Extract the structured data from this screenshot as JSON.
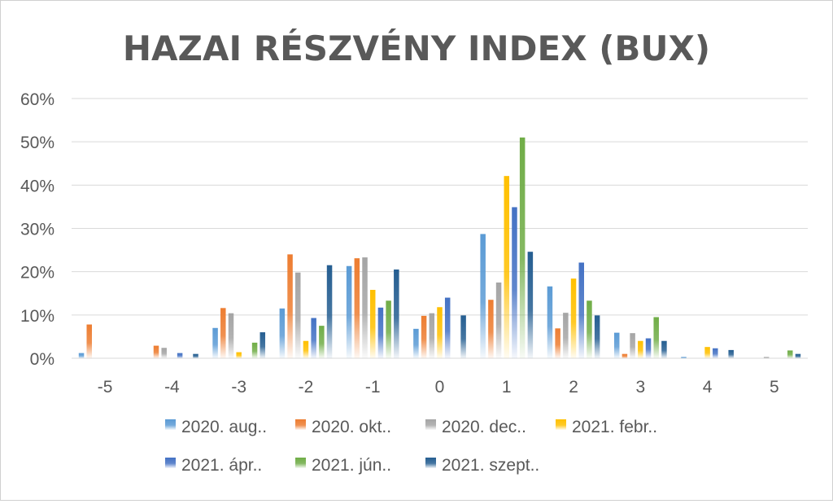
{
  "chart_data": {
    "type": "bar",
    "title": "HAZAI RÉSZVÉNY INDEX (BUX)",
    "xlabel": "",
    "ylabel": "",
    "categories": [
      "-5",
      "-4",
      "-3",
      "-2",
      "-1",
      "0",
      "1",
      "2",
      "3",
      "4",
      "5"
    ],
    "y_ticks": [
      "0%",
      "10%",
      "20%",
      "30%",
      "40%",
      "50%",
      "60%"
    ],
    "ylim": [
      0,
      60
    ],
    "grid": true,
    "legend_position": "bottom",
    "series": [
      {
        "name": "2020. aug..",
        "color": "#5b9bd5",
        "values": [
          1.2,
          0,
          7,
          11.5,
          21.3,
          6.8,
          28.7,
          16.6,
          5.9,
          0.3,
          0
        ]
      },
      {
        "name": "2020. okt..",
        "color": "#ed7d31",
        "values": [
          7.8,
          2.9,
          11.6,
          24,
          23.1,
          9.8,
          13.5,
          6.9,
          1,
          0,
          0
        ]
      },
      {
        "name": "2020. dec..",
        "color": "#a5a5a5",
        "values": [
          0,
          2.4,
          10.4,
          19.8,
          23.3,
          10.4,
          17.5,
          10.5,
          5.8,
          0,
          0.3
        ]
      },
      {
        "name": "2021. febr..",
        "color": "#ffc000",
        "values": [
          0,
          0,
          1.4,
          4,
          15.8,
          11.8,
          42.1,
          18.4,
          4,
          2.6,
          0
        ]
      },
      {
        "name": "2021. ápr..",
        "color": "#4472c4",
        "values": [
          0,
          1.2,
          0,
          9.3,
          11.7,
          14,
          34.9,
          22.1,
          4.6,
          2.3,
          0
        ]
      },
      {
        "name": "2021. jún..",
        "color": "#70ad47",
        "values": [
          0,
          0,
          3.6,
          7.5,
          13.3,
          0,
          51,
          13.3,
          9.5,
          0,
          1.8
        ]
      },
      {
        "name": "2021. szept..",
        "color": "#255e91",
        "values": [
          0,
          1,
          6,
          21.5,
          20.5,
          9.9,
          24.6,
          9.9,
          4,
          1.9,
          1
        ]
      }
    ]
  }
}
